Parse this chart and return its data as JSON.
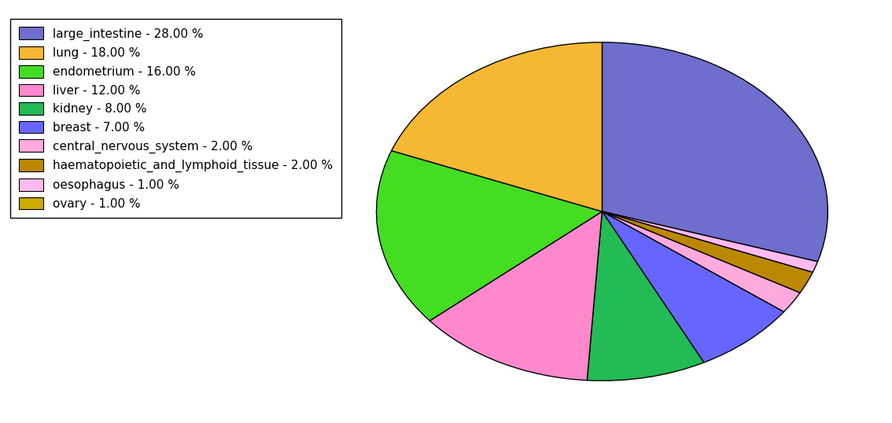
{
  "labels": [
    "large_intestine",
    "lung",
    "endometrium",
    "liver",
    "kidney",
    "breast",
    "central_nervous_system",
    "haematopoietic_and_lymphoid_tissue",
    "oesophagus",
    "ovary"
  ],
  "values": [
    28,
    18,
    16,
    12,
    8,
    7,
    2,
    2,
    1,
    1
  ],
  "colors": {
    "large_intestine": "#6e6ecc",
    "lung": "#f5b833",
    "endometrium": "#44dd22",
    "liver": "#ff88cc",
    "kidney": "#22bb55",
    "breast": "#6666ff",
    "central_nervous_system": "#ffaadd",
    "haematopoietic_and_lymphoid_tissue": "#bb8800",
    "oesophagus": "#ffbbee",
    "ovary": "#ccaa00"
  },
  "legend_labels": [
    "large_intestine - 28.00 %",
    "lung - 18.00 %",
    "endometrium - 16.00 %",
    "liver - 12.00 %",
    "kidney - 8.00 %",
    "breast - 7.00 %",
    "central_nervous_system - 2.00 %",
    "haematopoietic_and_lymphoid_tissue - 2.00 %",
    "oesophagus - 1.00 %",
    "ovary - 1.00 %"
  ],
  "figsize": [
    11.34,
    5.38
  ],
  "dpi": 100
}
